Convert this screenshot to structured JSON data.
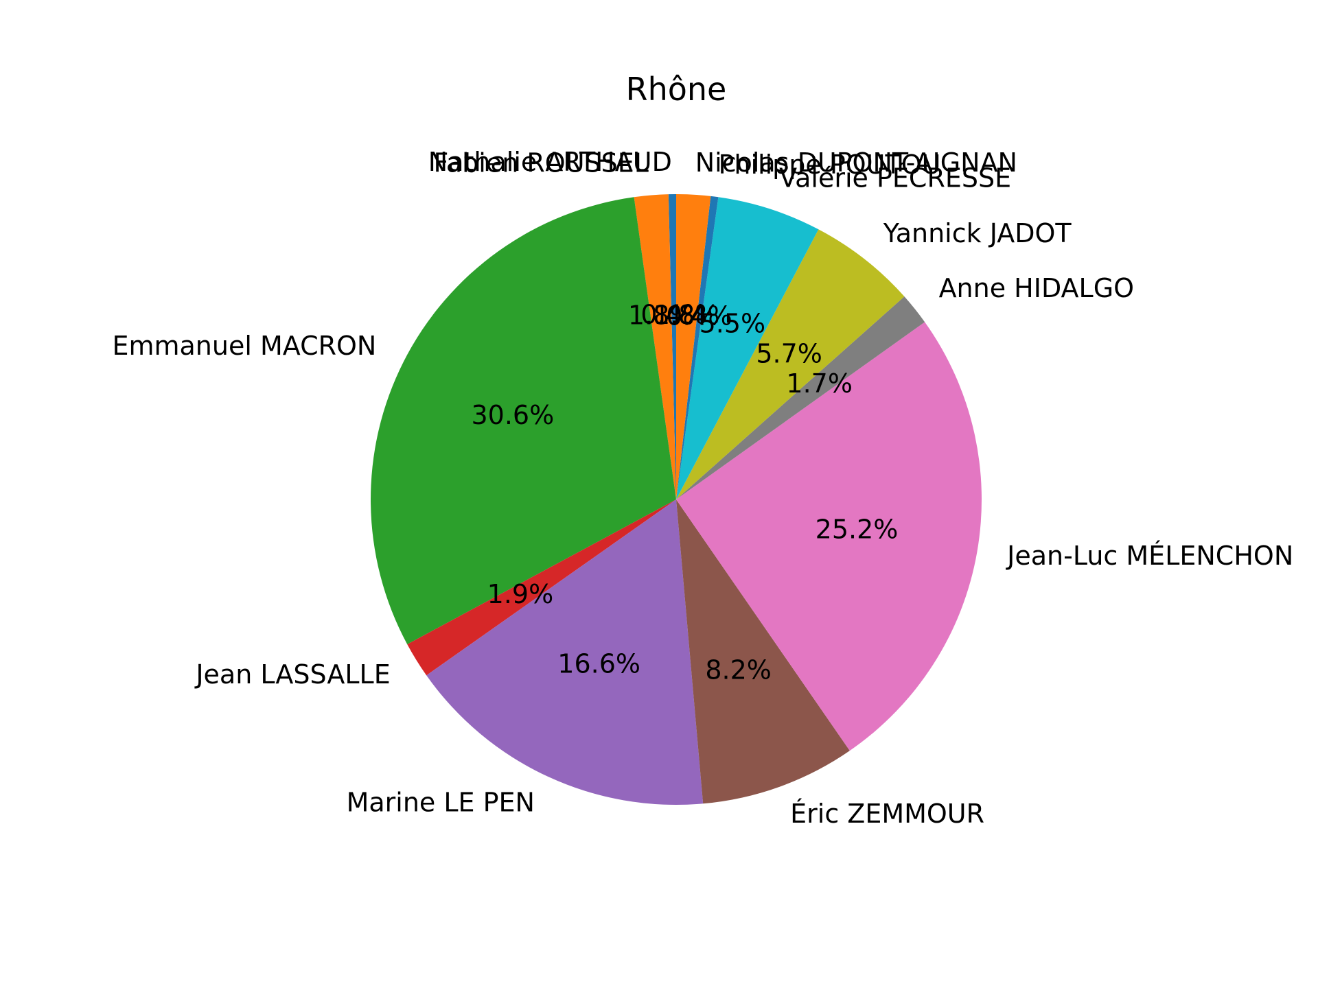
{
  "chart_data": {
    "type": "pie",
    "title": "Rhône",
    "slices": [
      {
        "name": "Nathalie ARTHAUD",
        "value": 0.4,
        "pct_label": "0.4%",
        "color": "#1f77b4"
      },
      {
        "name": "Fabien ROUSSEL",
        "value": 1.8,
        "pct_label": "1.8%",
        "color": "#ff7f0e"
      },
      {
        "name": "Emmanuel MACRON",
        "value": 30.6,
        "pct_label": "30.6%",
        "color": "#2ca02c"
      },
      {
        "name": "Jean LASSALLE",
        "value": 1.9,
        "pct_label": "1.9%",
        "color": "#d62728"
      },
      {
        "name": "Marine LE PEN",
        "value": 16.6,
        "pct_label": "16.6%",
        "color": "#9467bd"
      },
      {
        "name": "Éric ZEMMOUR",
        "value": 8.2,
        "pct_label": "8.2%",
        "color": "#8c564b"
      },
      {
        "name": "Jean-Luc MÉLENCHON",
        "value": 25.2,
        "pct_label": "25.2%",
        "color": "#e377c2"
      },
      {
        "name": "Anne HIDALGO",
        "value": 1.7,
        "pct_label": "1.7%",
        "color": "#7f7f7f"
      },
      {
        "name": "Yannick JADOT",
        "value": 5.7,
        "pct_label": "5.7%",
        "color": "#bcbd22"
      },
      {
        "name": "Valérie PÉCRESSE",
        "value": 5.5,
        "pct_label": "5.5%",
        "color": "#17becf"
      },
      {
        "name": "Philippe POUTOU",
        "value": 0.4,
        "pct_label": "0.4%",
        "color": "#1f77b4"
      },
      {
        "name": "Nicolas DUPONT-AIGNAN",
        "value": 1.8,
        "pct_label": "1.8%",
        "color": "#ff7f0e"
      }
    ],
    "start_angle_deg": 90,
    "direction": "counterclockwise"
  }
}
